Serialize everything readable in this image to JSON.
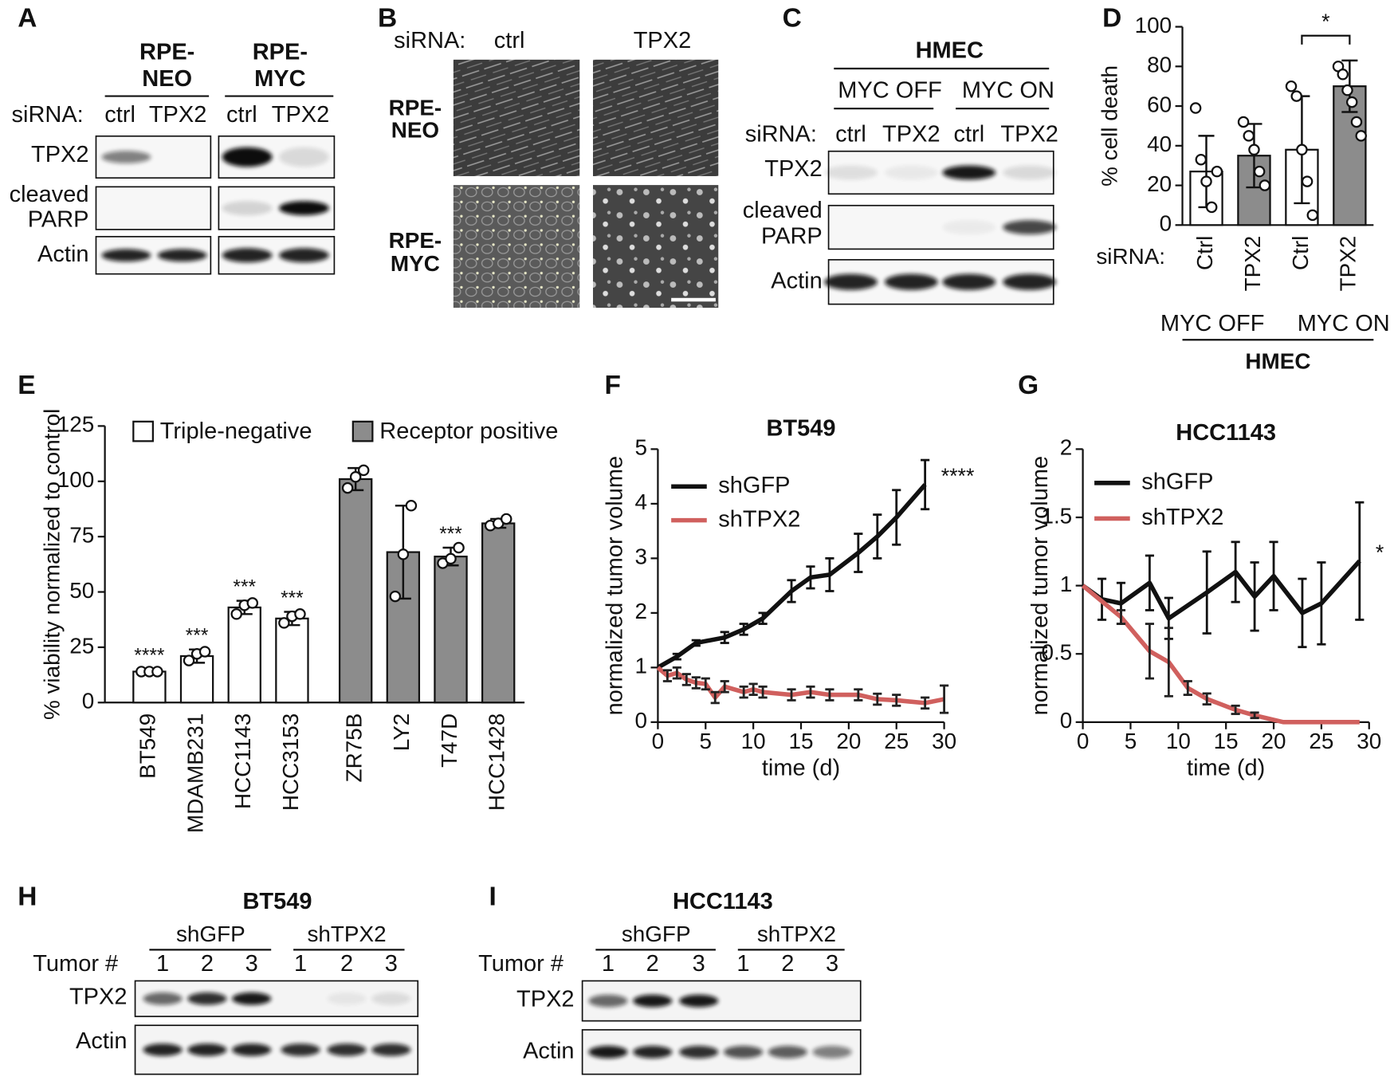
{
  "figure": {
    "a": {
      "label": "A",
      "siRNA": "siRNA:",
      "groups": [
        {
          "name": [
            "RPE-",
            "NEO"
          ],
          "lanes": [
            "ctrl",
            "TPX2"
          ]
        },
        {
          "name": [
            "RPE-",
            "MYC"
          ],
          "lanes": [
            "ctrl",
            "TPX2"
          ]
        }
      ],
      "rows": [
        [
          "TPX2"
        ],
        [
          "cleaved",
          "PARP"
        ],
        [
          "Actin"
        ]
      ]
    },
    "b": {
      "label": "B",
      "siRNA": "siRNA:",
      "columns": [
        "ctrl",
        "TPX2"
      ],
      "rows": [
        [
          "RPE-",
          "NEO"
        ],
        [
          "RPE-",
          "MYC"
        ]
      ]
    },
    "c": {
      "label": "C",
      "cell_line": "HMEC",
      "conditions": [
        "MYC OFF",
        "MYC ON"
      ],
      "siRNA": "siRNA:",
      "lanes": [
        "ctrl",
        "TPX2",
        "ctrl",
        "TPX2"
      ],
      "rows": [
        [
          "TPX2"
        ],
        [
          "cleaved",
          "PARP"
        ],
        [
          "Actin"
        ]
      ]
    },
    "h": {
      "label": "H",
      "title": "BT549",
      "groups": [
        "shGFP",
        "shTPX2"
      ],
      "lane_label": "Tumor #",
      "lanes": [
        "1",
        "2",
        "3",
        "1",
        "2",
        "3"
      ],
      "rows": [
        "TPX2",
        "Actin"
      ]
    },
    "i": {
      "label": "I",
      "title": "HCC1143",
      "groups": [
        "shGFP",
        "shTPX2"
      ],
      "lane_label": "Tumor #",
      "lanes": [
        "1",
        "2",
        "3",
        "1",
        "2",
        "3"
      ],
      "rows": [
        "TPX2",
        "Actin"
      ]
    }
  },
  "chart_data": [
    {
      "panel": "D",
      "type": "bar",
      "ylabel": "% cell death",
      "ylim": [
        0,
        100
      ],
      "yticks": [
        0,
        20,
        40,
        60,
        80,
        100
      ],
      "x_label": "siRNA:",
      "categories": [
        "Ctrl",
        "TPX2",
        "Ctrl",
        "TPX2"
      ],
      "values": [
        27,
        35,
        38,
        70
      ],
      "errors": [
        18,
        16,
        27,
        13
      ],
      "colors": [
        "#ffffff",
        "#8c8c8c",
        "#ffffff",
        "#8c8c8c"
      ],
      "points": [
        [
          59,
          33,
          22,
          9,
          27
        ],
        [
          52,
          45,
          38,
          27,
          20
        ],
        [
          70,
          65,
          38,
          22,
          5
        ],
        [
          80,
          76,
          68,
          62,
          52,
          45
        ]
      ],
      "groups": [
        "MYC OFF",
        "MYC ON"
      ],
      "group_title": "HMEC",
      "significance": "*"
    },
    {
      "panel": "E",
      "type": "bar",
      "ylabel": "% viability normalized to control",
      "ylim": [
        0,
        125
      ],
      "yticks": [
        0,
        25,
        50,
        75,
        100,
        125
      ],
      "series": [
        {
          "name": "Triple-negative",
          "color": "#ffffff",
          "categories": [
            "BT549",
            "MDAMB231",
            "HCC1143",
            "HCC3153"
          ],
          "values": [
            14,
            21,
            43,
            38
          ],
          "errors": [
            1,
            3,
            3,
            3
          ],
          "points": [
            [
              14,
              14,
              14
            ],
            [
              19,
              22,
              23
            ],
            [
              40,
              44,
              45
            ],
            [
              36,
              39,
              40
            ]
          ],
          "annotations": [
            "****",
            "***",
            "***",
            "***"
          ]
        },
        {
          "name": "Receptor positive",
          "color": "#8c8c8c",
          "categories": [
            "ZR75B",
            "LY2",
            "T47D",
            "HCC1428"
          ],
          "values": [
            101,
            68,
            66,
            81
          ],
          "errors": [
            5,
            21,
            4,
            2
          ],
          "points": [
            [
              97,
              102,
              105
            ],
            [
              48,
              67,
              89
            ],
            [
              63,
              65,
              70
            ],
            [
              80,
              81,
              83
            ]
          ],
          "annotations": [
            null,
            null,
            "***",
            null
          ]
        }
      ]
    },
    {
      "panel": "F",
      "type": "line",
      "title": "BT549",
      "xlabel": "time (d)",
      "ylabel": "normalized tumor volume",
      "xlim": [
        0,
        30
      ],
      "xticks": [
        0,
        5,
        10,
        15,
        20,
        25,
        30
      ],
      "ylim": [
        0,
        5
      ],
      "yticks": [
        0,
        1,
        2,
        3,
        4,
        5
      ],
      "annotation": "****",
      "series": [
        {
          "name": "shGFP",
          "color": "#111111",
          "x": [
            0,
            2,
            4,
            7,
            9,
            11,
            14,
            16,
            18,
            21,
            23,
            25,
            28
          ],
          "values": [
            1,
            1.2,
            1.45,
            1.55,
            1.7,
            1.9,
            2.4,
            2.65,
            2.7,
            3.1,
            3.4,
            3.75,
            4.35
          ],
          "errors": [
            0,
            0.05,
            0.05,
            0.1,
            0.1,
            0.1,
            0.2,
            0.2,
            0.3,
            0.35,
            0.4,
            0.5,
            0.45
          ]
        },
        {
          "name": "shTPX2",
          "color": "#d0605e",
          "x": [
            0,
            1,
            2,
            3,
            4,
            5,
            6,
            7,
            9,
            10,
            11,
            14,
            16,
            18,
            21,
            23,
            25,
            28,
            30
          ],
          "values": [
            1,
            0.85,
            0.9,
            0.78,
            0.72,
            0.7,
            0.45,
            0.65,
            0.55,
            0.6,
            0.55,
            0.5,
            0.55,
            0.5,
            0.5,
            0.42,
            0.4,
            0.35,
            0.42
          ],
          "errors": [
            0,
            0.1,
            0.1,
            0.1,
            0.1,
            0.1,
            0.1,
            0.1,
            0.1,
            0.1,
            0.1,
            0.1,
            0.1,
            0.1,
            0.1,
            0.1,
            0.1,
            0.1,
            0.25
          ]
        }
      ]
    },
    {
      "panel": "G",
      "type": "line",
      "title": "HCC1143",
      "xlabel": "time (d)",
      "ylabel": "normalized tumor volume",
      "xlim": [
        0,
        30
      ],
      "xticks": [
        0,
        5,
        10,
        15,
        20,
        25,
        30
      ],
      "ylim": [
        0,
        2
      ],
      "yticks": [
        0,
        0.5,
        1,
        1.5,
        2
      ],
      "annotation": "*",
      "series": [
        {
          "name": "shGFP",
          "color": "#111111",
          "x": [
            0,
            2,
            4,
            7,
            9,
            13,
            16,
            18,
            20,
            23,
            25,
            29
          ],
          "values": [
            1,
            0.9,
            0.87,
            1.02,
            0.76,
            0.95,
            1.1,
            0.92,
            1.07,
            0.8,
            0.87,
            1.18
          ],
          "errors": [
            0,
            0.15,
            0.15,
            0.2,
            0.15,
            0.3,
            0.22,
            0.25,
            0.25,
            0.25,
            0.3,
            0.43
          ]
        },
        {
          "name": "shTPX2",
          "color": "#d0605e",
          "x": [
            0,
            4,
            7,
            9,
            11,
            13,
            16,
            18,
            21,
            23,
            25,
            29
          ],
          "values": [
            1,
            0.77,
            0.52,
            0.44,
            0.25,
            0.17,
            0.09,
            0.05,
            0,
            0,
            0,
            0
          ],
          "errors": [
            0,
            0.05,
            0.2,
            0.25,
            0.05,
            0.04,
            0.03,
            0.02,
            0,
            0,
            0,
            0
          ]
        }
      ]
    }
  ]
}
